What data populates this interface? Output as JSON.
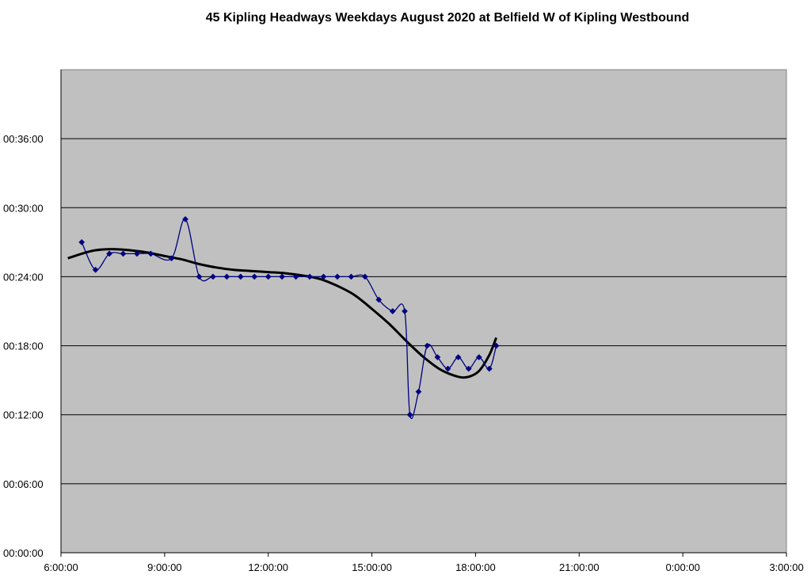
{
  "chart_data": {
    "type": "line",
    "title": "45 Kipling Headways Weekdays August 2020 at Belfield W of Kipling Westbound",
    "xlabel": "",
    "ylabel": "",
    "x_unit": "time of day (hours)",
    "y_unit": "headway (hours:minutes:seconds)",
    "xlim_hours": [
      6,
      27
    ],
    "ylim_minutes": [
      0,
      42
    ],
    "x_ticks": [
      "6:00:00",
      "9:00:00",
      "12:00:00",
      "15:00:00",
      "18:00:00",
      "21:00:00",
      "0:00:00",
      "3:00:00"
    ],
    "y_ticks": [
      "00:00:00",
      "00:06:00",
      "00:12:00",
      "00:18:00",
      "00:24:00",
      "00:30:00",
      "00:36:00"
    ],
    "grid": "horizontal major gridlines",
    "plot_background": "#c0c0c0",
    "legend": "none",
    "series": [
      {
        "kind": "observed headways",
        "color": "#000080",
        "marker": "diamond",
        "smoothed": true,
        "x_hours": [
          6.6,
          7.0,
          7.4,
          7.8,
          8.2,
          8.6,
          9.2,
          9.6,
          10.0,
          10.4,
          10.8,
          11.2,
          11.6,
          12.0,
          12.4,
          12.8,
          13.2,
          13.6,
          14.0,
          14.4,
          14.8,
          15.2,
          15.6,
          15.95,
          16.1,
          16.35,
          16.6,
          16.9,
          17.2,
          17.5,
          17.8,
          18.1,
          18.4,
          18.6
        ],
        "y_minutes": [
          27,
          24.6,
          26,
          26,
          26,
          26,
          25.6,
          29,
          24,
          24,
          24,
          24,
          24,
          24,
          24,
          24,
          24,
          24,
          24,
          24,
          24,
          22,
          21,
          21,
          12,
          14,
          18,
          17,
          16,
          17,
          16,
          17,
          16,
          18
        ]
      },
      {
        "kind": "polynomial trendline",
        "color": "#000000",
        "marker": "none",
        "smoothed": true,
        "x_hours": [
          6.2,
          6.6,
          7.0,
          7.5,
          8.0,
          8.5,
          9.0,
          9.5,
          10.0,
          10.5,
          11.0,
          11.5,
          12.0,
          12.5,
          13.0,
          13.5,
          14.0,
          14.5,
          15.0,
          15.5,
          16.0,
          16.5,
          17.0,
          17.5,
          17.8,
          18.1,
          18.4,
          18.6
        ],
        "y_minutes": [
          25.6,
          26.0,
          26.3,
          26.4,
          26.3,
          26.1,
          25.8,
          25.5,
          25.1,
          24.8,
          24.6,
          24.5,
          24.4,
          24.3,
          24.1,
          23.8,
          23.2,
          22.4,
          21.2,
          19.9,
          18.4,
          17.0,
          15.9,
          15.3,
          15.3,
          15.8,
          17.2,
          18.7
        ]
      }
    ]
  }
}
